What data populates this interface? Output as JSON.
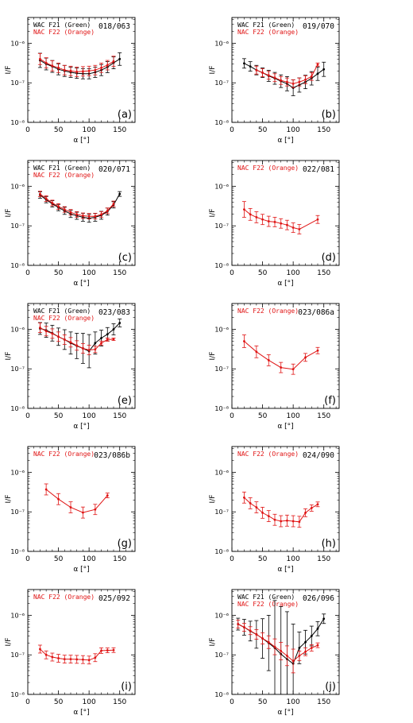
{
  "colors": {
    "wac": "#000000",
    "nac": "#e01414"
  },
  "chart_data": [
    {
      "panel": "(a)",
      "id": "018/063",
      "type": "line",
      "yscale": "log",
      "xlabel": "α [°]",
      "ylabel": "I/F",
      "xlim": [
        0,
        175
      ],
      "ylim": [
        1e-08,
        4.5e-06
      ],
      "xticks": [
        "0",
        "50",
        "100",
        "150"
      ],
      "yticks": [
        "10⁻⁸",
        "10⁻⁷",
        "10⁻⁶"
      ],
      "legend": [
        "WAC F21 (Green)",
        "NAC F22 (Orange)"
      ],
      "series": [
        {
          "name": "WAC F21 (Green)",
          "color": "#000000",
          "x": [
            20,
            30,
            40,
            50,
            60,
            70,
            80,
            90,
            100,
            110,
            120,
            130,
            140,
            150
          ],
          "y": [
            3.7e-07,
            3e-07,
            2.6e-07,
            2.2e-07,
            2e-07,
            1.85e-07,
            1.75e-07,
            1.7e-07,
            1.7e-07,
            1.85e-07,
            2.1e-07,
            2.5e-07,
            3.2e-07,
            4e-07
          ],
          "err": [
            0.18,
            0.15,
            0.15,
            0.14,
            0.14,
            0.13,
            0.13,
            0.13,
            0.13,
            0.13,
            0.14,
            0.14,
            0.15,
            0.16
          ]
        },
        {
          "name": "NAC F22 (Orange)",
          "color": "#e01414",
          "x": [
            20,
            30,
            40,
            50,
            60,
            70,
            80,
            90,
            100,
            110,
            120,
            130,
            140
          ],
          "y": [
            4e-07,
            3.2e-07,
            2.7e-07,
            2.4e-07,
            2.1e-07,
            2e-07,
            1.9e-07,
            1.95e-07,
            2e-07,
            2.1e-07,
            2.4e-07,
            2.8e-07,
            3.5e-07
          ],
          "err": [
            0.14,
            0.13,
            0.13,
            0.12,
            0.12,
            0.12,
            0.12,
            0.12,
            0.12,
            0.12,
            0.12,
            0.12,
            0.13
          ]
        }
      ]
    },
    {
      "panel": "(b)",
      "id": "019/070",
      "type": "line",
      "yscale": "log",
      "xlabel": "α [°]",
      "ylabel": "I/F",
      "xlim": [
        0,
        175
      ],
      "ylim": [
        1e-08,
        4.5e-06
      ],
      "xticks": [
        "0",
        "50",
        "100",
        "150"
      ],
      "yticks": [
        "10⁻⁸",
        "10⁻⁷",
        "10⁻⁶"
      ],
      "legend": [
        "WAC F21 (Green)",
        "NAC F22 (Orange)"
      ],
      "series": [
        {
          "name": "WAC F21 (Green)",
          "color": "#000000",
          "x": [
            20,
            30,
            40,
            50,
            60,
            70,
            80,
            90,
            100,
            110,
            120,
            130,
            140,
            150
          ],
          "y": [
            3.1e-07,
            2.6e-07,
            2.1e-07,
            1.8e-07,
            1.5e-07,
            1.3e-07,
            1.1e-07,
            9.5e-08,
            7.5e-08,
            8.8e-08,
            1.05e-07,
            1.3e-07,
            1.7e-07,
            2.2e-07
          ],
          "err": [
            0.12,
            0.12,
            0.12,
            0.12,
            0.14,
            0.15,
            0.16,
            0.18,
            0.2,
            0.18,
            0.17,
            0.17,
            0.17,
            0.18
          ]
        },
        {
          "name": "NAC F22 (Orange)",
          "color": "#e01414",
          "x": [
            40,
            50,
            60,
            70,
            80,
            90,
            100,
            110,
            120,
            130,
            140
          ],
          "y": [
            2.1e-07,
            1.8e-07,
            1.55e-07,
            1.35e-07,
            1.15e-07,
            1.05e-07,
            9.5e-08,
            1.05e-07,
            1.2e-07,
            1.45e-07,
            2.9e-07
          ],
          "err": [
            0.1,
            0.1,
            0.1,
            0.1,
            0.1,
            0.1,
            0.1,
            0.1,
            0.1,
            0.1,
            0.04
          ]
        }
      ]
    },
    {
      "panel": "(c)",
      "id": "020/071",
      "type": "line",
      "yscale": "log",
      "xlabel": "α [°]",
      "ylabel": "I/F",
      "xlim": [
        0,
        175
      ],
      "ylim": [
        1e-08,
        4.5e-06
      ],
      "xticks": [
        "0",
        "50",
        "100",
        "150"
      ],
      "yticks": [
        "10⁻⁸",
        "10⁻⁷",
        "10⁻⁶"
      ],
      "legend": [
        "WAC F21 (Green)",
        "NAC F22 (Orange)"
      ],
      "series": [
        {
          "name": "WAC F21 (Green)",
          "color": "#000000",
          "x": [
            20,
            30,
            40,
            50,
            60,
            70,
            80,
            90,
            100,
            110,
            120,
            130,
            140,
            150
          ],
          "y": [
            6e-07,
            4.6e-07,
            3.6e-07,
            2.9e-07,
            2.4e-07,
            2e-07,
            1.8e-07,
            1.65e-07,
            1.55e-07,
            1.65e-07,
            1.85e-07,
            2.3e-07,
            3.4e-07,
            6.4e-07
          ],
          "err": [
            0.08,
            0.08,
            0.08,
            0.08,
            0.09,
            0.09,
            0.09,
            0.1,
            0.1,
            0.1,
            0.1,
            0.09,
            0.08,
            0.06
          ]
        },
        {
          "name": "NAC F22 (Orange)",
          "color": "#e01414",
          "x": [
            20,
            30,
            40,
            50,
            60,
            70,
            80,
            90,
            100,
            110,
            120,
            130,
            140
          ],
          "y": [
            6.4e-07,
            4.9e-07,
            3.8e-07,
            3.1e-07,
            2.6e-07,
            2.2e-07,
            1.95e-07,
            1.8e-07,
            1.75e-07,
            1.75e-07,
            1.95e-07,
            2.4e-07,
            3.6e-07
          ],
          "err": [
            0.07,
            0.07,
            0.07,
            0.07,
            0.07,
            0.07,
            0.07,
            0.07,
            0.07,
            0.07,
            0.07,
            0.07,
            0.07
          ]
        }
      ]
    },
    {
      "panel": "(d)",
      "id": "022/081",
      "type": "line",
      "yscale": "log",
      "xlabel": "α [°]",
      "ylabel": "I/F",
      "xlim": [
        0,
        175
      ],
      "ylim": [
        1e-08,
        4.5e-06
      ],
      "xticks": [
        "0",
        "50",
        "100",
        "150"
      ],
      "yticks": [
        "10⁻⁸",
        "10⁻⁷",
        "10⁻⁶"
      ],
      "legend": [
        "NAC F22 (Orange)"
      ],
      "series": [
        {
          "name": "NAC F22 (Orange)",
          "color": "#e01414",
          "x": [
            20,
            30,
            40,
            50,
            60,
            70,
            80,
            90,
            100,
            110,
            140
          ],
          "y": [
            2.6e-07,
            1.95e-07,
            1.65e-07,
            1.45e-07,
            1.3e-07,
            1.25e-07,
            1.15e-07,
            1.05e-07,
            9e-08,
            8.2e-08,
            1.45e-07
          ],
          "err": [
            0.2,
            0.15,
            0.14,
            0.13,
            0.13,
            0.12,
            0.12,
            0.12,
            0.12,
            0.12,
            0.1
          ]
        }
      ]
    },
    {
      "panel": "(e)",
      "id": "023/083",
      "type": "line",
      "yscale": "log",
      "xlabel": "α [°]",
      "ylabel": "I/F",
      "xlim": [
        0,
        175
      ],
      "ylim": [
        1e-08,
        4.5e-06
      ],
      "xticks": [
        "0",
        "50",
        "100",
        "150"
      ],
      "yticks": [
        "10⁻⁸",
        "10⁻⁷",
        "10⁻⁶"
      ],
      "legend": [
        "WAC F21 (Green)",
        "NAC F22 (Orange)"
      ],
      "series": [
        {
          "name": "WAC F21 (Green)",
          "color": "#000000",
          "x": [
            20,
            30,
            40,
            50,
            60,
            70,
            80,
            90,
            100,
            110,
            120,
            130,
            140,
            150
          ],
          "y": [
            1.05e-06,
            9.5e-07,
            8e-07,
            6.5e-07,
            5.5e-07,
            4.5e-07,
            3.8e-07,
            3.3e-07,
            2.8e-07,
            4.5e-07,
            6e-07,
            7.5e-07,
            1e-06,
            1.45e-06
          ],
          "err": [
            0.15,
            0.18,
            0.2,
            0.22,
            0.25,
            0.28,
            0.32,
            0.38,
            0.42,
            0.28,
            0.2,
            0.17,
            0.14,
            0.1
          ]
        },
        {
          "name": "NAC F22 (Orange)",
          "color": "#e01414",
          "x": [
            20,
            30,
            40,
            50,
            60,
            70,
            80,
            90,
            100,
            110,
            120,
            130,
            140
          ],
          "y": [
            1.1e-06,
            9e-07,
            7.8e-07,
            6.5e-07,
            5.5e-07,
            4.7e-07,
            3.9e-07,
            3.3e-07,
            3e-07,
            3.1e-07,
            4.5e-07,
            5.5e-07,
            5.6e-07
          ],
          "err": [
            0.12,
            0.12,
            0.12,
            0.12,
            0.12,
            0.12,
            0.12,
            0.12,
            0.12,
            0.08,
            0.05,
            0.04,
            0.03
          ]
        }
      ]
    },
    {
      "panel": "(f)",
      "id": "023/086a",
      "type": "line",
      "yscale": "log",
      "xlabel": "α [°]",
      "ylabel": "I/F",
      "xlim": [
        0,
        175
      ],
      "ylim": [
        1e-08,
        4.5e-06
      ],
      "xticks": [
        "0",
        "50",
        "100",
        "150"
      ],
      "yticks": [
        "10⁻⁸",
        "10⁻⁷",
        "10⁻⁶"
      ],
      "legend": [
        "NAC F22 (Orange)"
      ],
      "series": [
        {
          "name": "NAC F22 (Orange)",
          "color": "#e01414",
          "x": [
            20,
            40,
            60,
            80,
            100,
            120,
            140
          ],
          "y": [
            5e-07,
            2.7e-07,
            1.65e-07,
            1.08e-07,
            9.8e-08,
            1.95e-07,
            2.9e-07
          ],
          "err": [
            0.16,
            0.15,
            0.14,
            0.13,
            0.13,
            0.1,
            0.08
          ]
        }
      ]
    },
    {
      "panel": "(g)",
      "id": "023/086b",
      "type": "line",
      "yscale": "log",
      "xlabel": "α [°]",
      "ylabel": "I/F",
      "xlim": [
        0,
        175
      ],
      "ylim": [
        1e-08,
        4.5e-06
      ],
      "xticks": [
        "0",
        "50",
        "100",
        "150"
      ],
      "yticks": [
        "10⁻⁸",
        "10⁻⁷",
        "10⁻⁶"
      ],
      "legend": [
        "NAC F22 (Orange)"
      ],
      "series": [
        {
          "name": "NAC F22 (Orange)",
          "color": "#e01414",
          "x": [
            30,
            50,
            70,
            90,
            110,
            130
          ],
          "y": [
            3.7e-07,
            2.1e-07,
            1.3e-07,
            9.6e-08,
            1.15e-07,
            2.6e-07
          ],
          "err": [
            0.14,
            0.14,
            0.14,
            0.14,
            0.13,
            0.06
          ]
        }
      ]
    },
    {
      "panel": "(h)",
      "id": "024/090",
      "type": "line",
      "yscale": "log",
      "xlabel": "α [°]",
      "ylabel": "I/F",
      "xlim": [
        0,
        175
      ],
      "ylim": [
        1e-08,
        4.5e-06
      ],
      "xticks": [
        "0",
        "50",
        "100",
        "150"
      ],
      "yticks": [
        "10⁻⁸",
        "10⁻⁷",
        "10⁻⁶"
      ],
      "legend": [
        "NAC F22 (Orange)"
      ],
      "series": [
        {
          "name": "NAC F22 (Orange)",
          "color": "#e01414",
          "x": [
            20,
            30,
            40,
            50,
            60,
            70,
            80,
            90,
            100,
            110,
            120,
            130,
            140
          ],
          "y": [
            2.3e-07,
            1.65e-07,
            1.3e-07,
            9.5e-08,
            7.8e-08,
            6.3e-08,
            5.8e-08,
            6e-08,
            5.8e-08,
            5.6e-08,
            9.5e-08,
            1.25e-07,
            1.55e-07
          ],
          "err": [
            0.14,
            0.14,
            0.14,
            0.14,
            0.14,
            0.14,
            0.14,
            0.14,
            0.14,
            0.14,
            0.1,
            0.08,
            0.06
          ]
        }
      ]
    },
    {
      "panel": "(i)",
      "id": "025/092",
      "type": "line",
      "yscale": "log",
      "xlabel": "α [°]",
      "ylabel": "I/F",
      "xlim": [
        0,
        175
      ],
      "ylim": [
        1e-08,
        4.5e-06
      ],
      "xticks": [
        "0",
        "50",
        "100",
        "150"
      ],
      "yticks": [
        "10⁻⁸",
        "10⁻⁷",
        "10⁻⁶"
      ],
      "legend": [
        "NAC F22 (Orange)"
      ],
      "series": [
        {
          "name": "NAC F22 (Orange)",
          "color": "#e01414",
          "x": [
            20,
            30,
            40,
            50,
            60,
            70,
            80,
            90,
            100,
            110,
            120,
            130,
            140
          ],
          "y": [
            1.4e-07,
            1e-07,
            8.8e-08,
            8.2e-08,
            7.8e-08,
            7.8e-08,
            7.7e-08,
            7.6e-08,
            7.4e-08,
            8.5e-08,
            1.28e-07,
            1.3e-07,
            1.32e-07
          ],
          "err": [
            0.1,
            0.1,
            0.1,
            0.1,
            0.1,
            0.1,
            0.1,
            0.1,
            0.1,
            0.1,
            0.07,
            0.06,
            0.06
          ]
        }
      ]
    },
    {
      "panel": "(j)",
      "id": "026/096",
      "type": "line",
      "yscale": "log",
      "xlabel": "α [°]",
      "ylabel": "I/F",
      "xlim": [
        0,
        175
      ],
      "ylim": [
        1e-08,
        4.5e-06
      ],
      "xticks": [
        "0",
        "50",
        "100",
        "150"
      ],
      "yticks": [
        "10⁻⁸",
        "10⁻⁷",
        "10⁻⁶"
      ],
      "legend": [
        "WAC F21 (Green)",
        "NAC F22 (Orange)"
      ],
      "series": [
        {
          "name": "WAC F21 (Green)",
          "color": "#000000",
          "x": [
            10,
            20,
            30,
            40,
            50,
            60,
            70,
            80,
            90,
            100,
            110,
            120,
            130,
            140,
            150
          ],
          "y": [
            6e-07,
            5e-07,
            4e-07,
            3.3e-07,
            2.6e-07,
            2e-07,
            1.5e-07,
            1.05e-07,
            7.8e-08,
            6e-08,
            1.5e-07,
            2.1e-07,
            3e-07,
            4.6e-07,
            8.2e-07
          ],
          "err": [
            0.15,
            0.2,
            0.25,
            0.35,
            0.5,
            0.7,
            1.2,
            1.2,
            1.2,
            1.0,
            0.4,
            0.3,
            0.25,
            0.18,
            0.12
          ]
        },
        {
          "name": "NAC F22 (Orange)",
          "color": "#e01414",
          "x": [
            10,
            20,
            30,
            40,
            50,
            60,
            70,
            80,
            90,
            100,
            110,
            120,
            130,
            140
          ],
          "y": [
            6e-07,
            5e-07,
            4.1e-07,
            3.3e-07,
            2.6e-07,
            2.1e-07,
            1.6e-07,
            1.25e-07,
            9.5e-08,
            7e-08,
            9.5e-08,
            1.2e-07,
            1.5e-07,
            1.75e-07
          ],
          "err": [
            0.1,
            0.1,
            0.1,
            0.12,
            0.14,
            0.16,
            0.2,
            0.22,
            0.25,
            0.3,
            0.12,
            0.1,
            0.08,
            0.06
          ]
        }
      ]
    }
  ]
}
